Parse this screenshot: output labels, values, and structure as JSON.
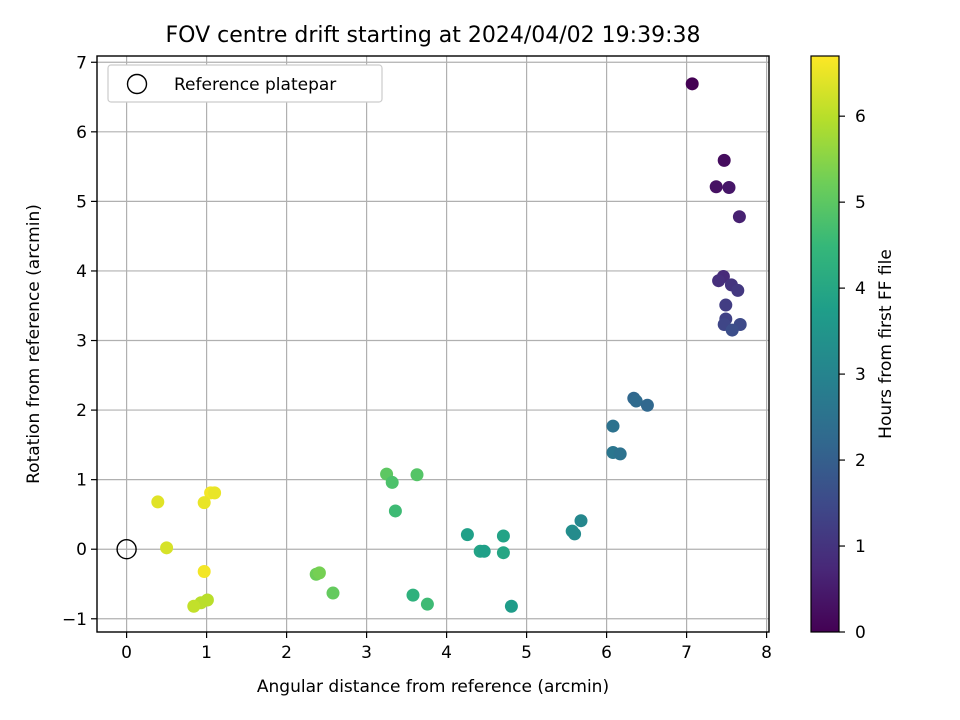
{
  "chart_data": {
    "type": "scatter",
    "title": "FOV centre drift starting at 2024/04/02 19:39:38",
    "xlabel": "Angular distance from reference (arcmin)",
    "ylabel": "Rotation from reference (arcmin)",
    "xlim": [
      -0.37,
      8.03
    ],
    "ylim": [
      -1.19,
      7.09
    ],
    "xticks": [
      "0",
      "1",
      "2",
      "3",
      "4",
      "5",
      "6",
      "7",
      "8"
    ],
    "yticks": [
      "−1",
      "0",
      "1",
      "2",
      "3",
      "4",
      "5",
      "6",
      "7"
    ],
    "grid": true,
    "legend": {
      "position": "upper-left",
      "entries": [
        {
          "label": "Reference platepar",
          "marker": "open-circle",
          "color": "#000000"
        }
      ]
    },
    "reference_point": {
      "x": 0,
      "y": 0
    },
    "colorbar": {
      "label": "Hours from first FF file",
      "colormap": "viridis",
      "range": [
        0,
        6.7
      ],
      "ticks": [
        "0",
        "1",
        "2",
        "3",
        "4",
        "5",
        "6"
      ]
    },
    "series": [
      {
        "color_by": "hours",
        "points": [
          {
            "x": 7.07,
            "y": 6.69,
            "c": 0.0
          },
          {
            "x": 7.47,
            "y": 5.59,
            "c": 0.2
          },
          {
            "x": 7.37,
            "y": 5.21,
            "c": 0.3
          },
          {
            "x": 7.53,
            "y": 5.2,
            "c": 0.4
          },
          {
            "x": 7.66,
            "y": 4.78,
            "c": 0.6
          },
          {
            "x": 7.46,
            "y": 3.92,
            "c": 0.8
          },
          {
            "x": 7.4,
            "y": 3.86,
            "c": 0.9
          },
          {
            "x": 7.56,
            "y": 3.8,
            "c": 1.0
          },
          {
            "x": 7.64,
            "y": 3.72,
            "c": 1.1
          },
          {
            "x": 7.49,
            "y": 3.51,
            "c": 1.2
          },
          {
            "x": 7.49,
            "y": 3.31,
            "c": 1.3
          },
          {
            "x": 7.47,
            "y": 3.23,
            "c": 1.4
          },
          {
            "x": 7.67,
            "y": 3.23,
            "c": 1.5
          },
          {
            "x": 7.57,
            "y": 3.15,
            "c": 1.6
          },
          {
            "x": 6.34,
            "y": 2.17,
            "c": 2.2
          },
          {
            "x": 6.37,
            "y": 2.13,
            "c": 2.3
          },
          {
            "x": 6.51,
            "y": 2.07,
            "c": 2.2
          },
          {
            "x": 6.08,
            "y": 1.77,
            "c": 2.5
          },
          {
            "x": 6.08,
            "y": 1.39,
            "c": 2.6
          },
          {
            "x": 6.17,
            "y": 1.37,
            "c": 2.5
          },
          {
            "x": 5.68,
            "y": 0.41,
            "c": 3.1
          },
          {
            "x": 5.57,
            "y": 0.26,
            "c": 3.3
          },
          {
            "x": 5.6,
            "y": 0.22,
            "c": 3.2
          },
          {
            "x": 4.26,
            "y": 0.21,
            "c": 3.8
          },
          {
            "x": 4.71,
            "y": 0.19,
            "c": 3.9
          },
          {
            "x": 4.42,
            "y": -0.03,
            "c": 3.9
          },
          {
            "x": 4.47,
            "y": -0.03,
            "c": 3.8
          },
          {
            "x": 4.71,
            "y": -0.05,
            "c": 4.0
          },
          {
            "x": 4.81,
            "y": -0.82,
            "c": 3.7
          },
          {
            "x": 3.25,
            "y": 1.08,
            "c": 5.0
          },
          {
            "x": 3.63,
            "y": 1.07,
            "c": 4.9
          },
          {
            "x": 3.32,
            "y": 0.96,
            "c": 4.8
          },
          {
            "x": 3.36,
            "y": 0.55,
            "c": 4.6
          },
          {
            "x": 3.58,
            "y": -0.66,
            "c": 4.3
          },
          {
            "x": 3.76,
            "y": -0.79,
            "c": 4.6
          },
          {
            "x": 2.37,
            "y": -0.36,
            "c": 5.2
          },
          {
            "x": 2.41,
            "y": -0.34,
            "c": 5.3
          },
          {
            "x": 2.58,
            "y": -0.63,
            "c": 5.1
          },
          {
            "x": 0.39,
            "y": 0.68,
            "c": 6.4
          },
          {
            "x": 1.05,
            "y": 0.81,
            "c": 6.6
          },
          {
            "x": 1.1,
            "y": 0.81,
            "c": 6.5
          },
          {
            "x": 0.97,
            "y": 0.67,
            "c": 6.5
          },
          {
            "x": 0.5,
            "y": 0.02,
            "c": 6.3
          },
          {
            "x": 0.97,
            "y": -0.32,
            "c": 6.6
          },
          {
            "x": 1.01,
            "y": -0.73,
            "c": 6.0
          },
          {
            "x": 0.93,
            "y": -0.77,
            "c": 6.0
          },
          {
            "x": 0.84,
            "y": -0.82,
            "c": 6.1
          }
        ]
      }
    ]
  }
}
